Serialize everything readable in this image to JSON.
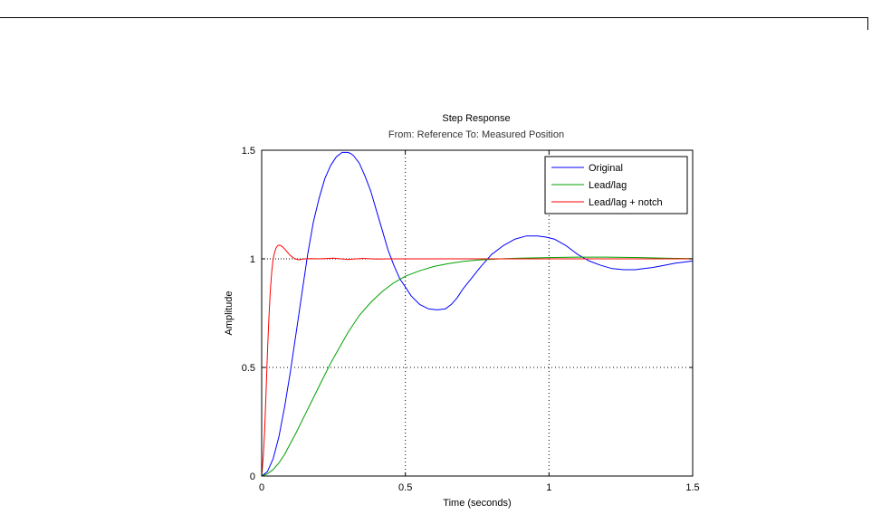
{
  "chart_data": {
    "type": "line",
    "title": "Step Response",
    "subtitle": "From: Reference  To: Measured Position",
    "xlabel": "Time (seconds)",
    "ylabel": "Amplitude",
    "xlim": [
      0,
      1.5
    ],
    "ylim": [
      0,
      1.5
    ],
    "xticks": [
      0,
      0.5,
      1,
      1.5
    ],
    "xtick_labels": [
      "0",
      "0.5",
      "1",
      "1.5"
    ],
    "yticks": [
      0,
      0.5,
      1,
      1.5
    ],
    "ytick_labels": [
      "0",
      "0.5",
      "1",
      "1.5"
    ],
    "grid": true,
    "reference_line": 1,
    "legend_position": "top-right",
    "series": [
      {
        "name": "Original",
        "color": "#0000ff",
        "x": [
          0,
          0.02,
          0.04,
          0.06,
          0.08,
          0.1,
          0.12,
          0.14,
          0.16,
          0.18,
          0.2,
          0.22,
          0.24,
          0.26,
          0.28,
          0.3,
          0.31,
          0.32,
          0.34,
          0.36,
          0.38,
          0.4,
          0.42,
          0.44,
          0.46,
          0.48,
          0.5,
          0.52,
          0.55,
          0.58,
          0.61,
          0.64,
          0.66,
          0.68,
          0.7,
          0.73,
          0.76,
          0.8,
          0.84,
          0.88,
          0.92,
          0.96,
          0.99,
          1.02,
          1.06,
          1.1,
          1.14,
          1.18,
          1.22,
          1.26,
          1.3,
          1.33,
          1.36,
          1.4,
          1.44,
          1.47,
          1.5
        ],
        "y": [
          0,
          0.02,
          0.08,
          0.18,
          0.32,
          0.48,
          0.66,
          0.84,
          1.02,
          1.17,
          1.28,
          1.37,
          1.43,
          1.47,
          1.49,
          1.49,
          1.485,
          1.475,
          1.44,
          1.38,
          1.31,
          1.22,
          1.13,
          1.04,
          0.97,
          0.91,
          0.87,
          0.83,
          0.79,
          0.77,
          0.765,
          0.77,
          0.79,
          0.82,
          0.86,
          0.91,
          0.96,
          1.02,
          1.06,
          1.09,
          1.105,
          1.105,
          1.1,
          1.09,
          1.06,
          1.02,
          0.99,
          0.97,
          0.955,
          0.95,
          0.95,
          0.955,
          0.96,
          0.97,
          0.98,
          0.985,
          0.99
        ]
      },
      {
        "name": "Lead/lag",
        "color": "#00a000",
        "x": [
          0,
          0.02,
          0.04,
          0.06,
          0.08,
          0.1,
          0.12,
          0.15,
          0.18,
          0.21,
          0.24,
          0.27,
          0.3,
          0.34,
          0.38,
          0.42,
          0.46,
          0.5,
          0.55,
          0.6,
          0.65,
          0.7,
          0.75,
          0.8,
          0.85,
          0.9,
          1.0,
          1.1,
          1.2,
          1.32,
          1.4,
          1.5
        ],
        "y": [
          0,
          0.01,
          0.03,
          0.06,
          0.1,
          0.15,
          0.2,
          0.28,
          0.36,
          0.44,
          0.52,
          0.59,
          0.66,
          0.74,
          0.8,
          0.85,
          0.89,
          0.92,
          0.945,
          0.965,
          0.978,
          0.988,
          0.994,
          0.998,
          1.001,
          1.003,
          1.006,
          1.008,
          1.008,
          1.006,
          1.003,
          1.001
        ]
      },
      {
        "name": "Lead/lag + notch",
        "color": "#ff0000",
        "x": [
          0,
          0.005,
          0.01,
          0.015,
          0.02,
          0.025,
          0.03,
          0.035,
          0.04,
          0.045,
          0.05,
          0.055,
          0.06,
          0.065,
          0.07,
          0.075,
          0.08,
          0.09,
          0.1,
          0.11,
          0.12,
          0.13,
          0.14,
          0.15,
          0.17,
          0.2,
          0.25,
          0.3,
          0.35,
          0.4,
          0.45,
          0.6,
          0.8,
          1.0,
          1.2,
          1.5
        ],
        "y": [
          0,
          0.08,
          0.2,
          0.38,
          0.56,
          0.72,
          0.85,
          0.94,
          1.0,
          1.03,
          1.05,
          1.06,
          1.063,
          1.062,
          1.058,
          1.052,
          1.045,
          1.03,
          1.015,
          1.005,
          0.998,
          0.996,
          0.998,
          1.0,
          1.001,
          1.0,
          1.003,
          0.997,
          1.002,
          0.999,
          1.0,
          1.0,
          1.0,
          1.0,
          1.0,
          1.0
        ]
      }
    ]
  }
}
